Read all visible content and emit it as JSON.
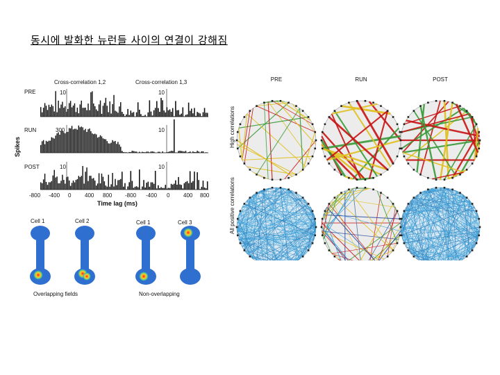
{
  "slide": {
    "title": "동시에 발화한 뉴런들 사이의 연결이 강해짐"
  },
  "cross_correlation": {
    "panel_titles": [
      "Cross-correlation 1,2",
      "Cross-correlation 1,3"
    ],
    "y_axis_label": "Spikes",
    "x_axis_label": "Time lag (ms)",
    "rows": [
      {
        "name": "PRE",
        "scale_left": "10",
        "scale_right": "10"
      },
      {
        "name": "RUN",
        "scale_left": "300",
        "scale_right": "10"
      },
      {
        "name": "POST",
        "scale_left": "10",
        "scale_right": "10"
      }
    ],
    "ticks_left": [
      "-800",
      "-400",
      "0",
      "400",
      "800"
    ],
    "ticks_right": [
      "-800",
      "-400",
      "0",
      "400",
      "800"
    ]
  },
  "place_fields": {
    "cell_labels": [
      "Cell 1",
      "Cell 2",
      "Cell 1",
      "Cell 3"
    ],
    "captions": [
      "Overlapping fields",
      "Non-overlapping"
    ],
    "colors": {
      "track": "#2f6fd0",
      "hot": "#d01010",
      "warm": "#f0d020"
    }
  },
  "network": {
    "column_labels": [
      "PRE",
      "RUN",
      "POST"
    ],
    "row_labels": [
      "High correlations",
      "All positive correlations"
    ],
    "colors": {
      "strong": "#c81414",
      "medium": "#e0c020",
      "weak": "#3a9a3a",
      "positive": "#3a9ed6"
    }
  }
}
